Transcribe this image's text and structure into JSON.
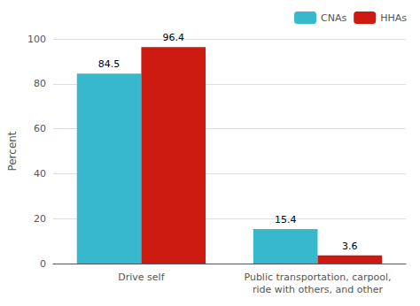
{
  "chart_data": {
    "type": "bar",
    "categories": [
      "Drive self",
      "Public transportation, carpool,\nride with others, and other"
    ],
    "series": [
      {
        "name": "CNAs",
        "color": "#38b8cc",
        "values": [
          84.5,
          15.4
        ]
      },
      {
        "name": "HHAs",
        "color": "#cc1a10",
        "values": [
          96.4,
          3.6
        ]
      }
    ],
    "ylabel": "Percent",
    "ylim": [
      0,
      100
    ],
    "yticks": [
      0,
      20,
      40,
      60,
      80,
      100
    ],
    "grid": true,
    "legend": "upper right",
    "data_labels": true
  }
}
